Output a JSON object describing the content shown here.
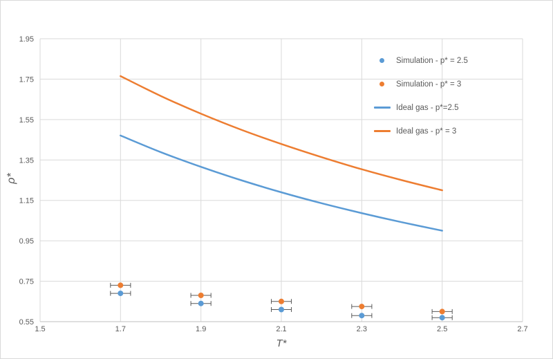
{
  "chart_data": {
    "type": "line",
    "title": "",
    "xlabel": "T*",
    "ylabel": "ρ*",
    "xlim": [
      1.5,
      2.7
    ],
    "ylim": [
      0.55,
      1.95
    ],
    "grid": true,
    "legend_position": "inside-top-right",
    "x_tick_values": [
      1.5,
      1.7,
      1.9,
      2.1,
      2.3,
      2.5,
      2.7
    ],
    "x_tick_labels": [
      "1.5",
      "1.7",
      "1.9",
      "2.1",
      "2.3",
      "2.5",
      "2.7"
    ],
    "y_tick_values": [
      0.55,
      0.75,
      0.95,
      1.15,
      1.35,
      1.55,
      1.75,
      1.95
    ],
    "y_tick_labels": [
      "0.55",
      "0.75",
      "0.95",
      "1.15",
      "1.35",
      "1.55",
      "1.75",
      "1.95"
    ],
    "colors": {
      "blue": "#5B9BD5",
      "orange": "#ED7D31",
      "gridline": "#D9D9D9",
      "axis_line": "#BFBFBF",
      "text": "#595959",
      "error_bar": "#595959"
    },
    "series": [
      {
        "name": "Simulation - p* = 2.5",
        "type": "scatter",
        "color": "#5B9BD5",
        "x": [
          1.7,
          1.9,
          2.1,
          2.3,
          2.5
        ],
        "y": [
          0.69,
          0.64,
          0.61,
          0.58,
          0.57
        ],
        "x_error": 0.025
      },
      {
        "name": "Simulation - p* = 3",
        "type": "scatter",
        "color": "#ED7D31",
        "x": [
          1.7,
          1.9,
          2.1,
          2.3,
          2.5
        ],
        "y": [
          0.73,
          0.68,
          0.65,
          0.625,
          0.6
        ],
        "x_error": 0.025
      },
      {
        "name": "Ideal gas - p*=2.5",
        "type": "line",
        "color": "#5B9BD5",
        "formula": "rho* = p*/T*, p* = 2.5",
        "x": [
          1.7,
          1.8,
          1.9,
          2.0,
          2.1,
          2.2,
          2.3,
          2.4,
          2.5
        ],
        "y": [
          1.471,
          1.389,
          1.316,
          1.25,
          1.19,
          1.136,
          1.087,
          1.042,
          1.0
        ]
      },
      {
        "name": "Ideal gas - p* = 3",
        "type": "line",
        "color": "#ED7D31",
        "formula": "rho* = p*/T*, p* = 3",
        "x": [
          1.7,
          1.8,
          1.9,
          2.0,
          2.1,
          2.2,
          2.3,
          2.4,
          2.5
        ],
        "y": [
          1.765,
          1.667,
          1.579,
          1.5,
          1.429,
          1.364,
          1.304,
          1.25,
          1.2
        ]
      }
    ]
  }
}
